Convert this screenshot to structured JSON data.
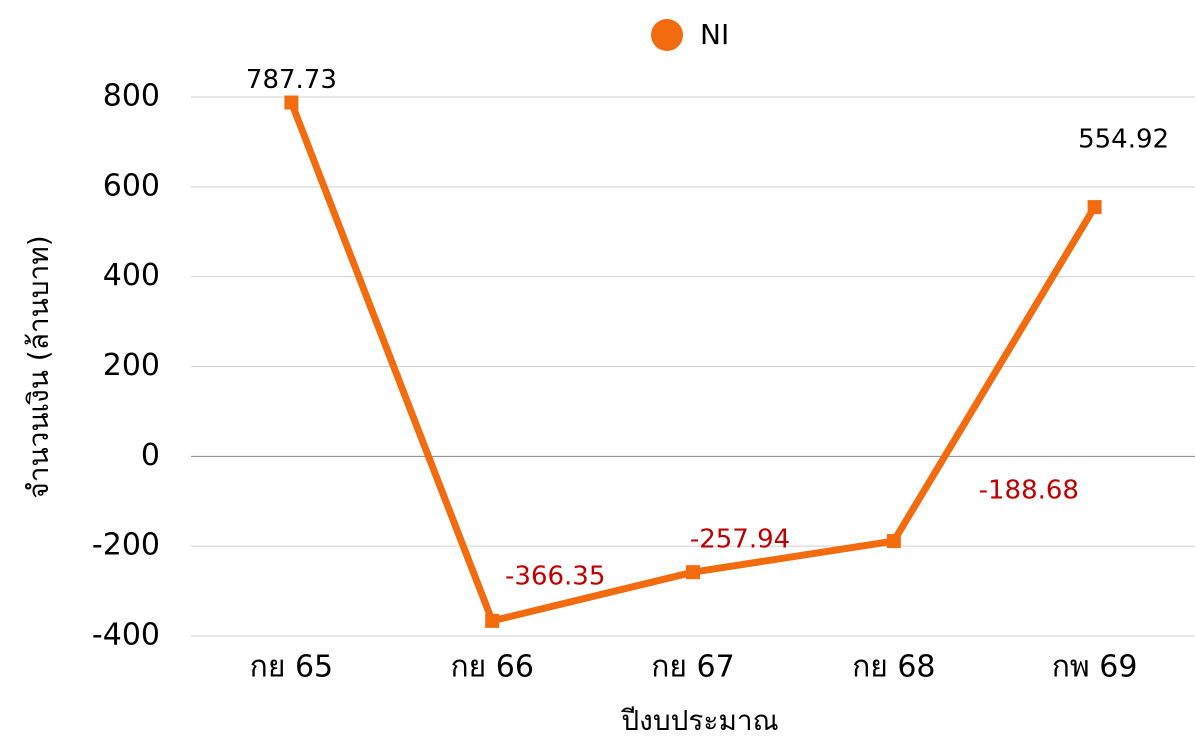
{
  "chart_data": {
    "type": "line",
    "x_label": "ปีงบประมาณ",
    "y_label": "จำนวนเงิน (ล้านบาท)",
    "categories": [
      "กย 65",
      "กย 66",
      "กย 67",
      "กย 68",
      "กพ 69"
    ],
    "series": [
      {
        "name": "NI",
        "color": "#f26b0f",
        "values": [
          787.73,
          -366.35,
          -257.94,
          -188.68,
          554.92
        ]
      }
    ],
    "ylim": [
      -400,
      800
    ],
    "yticks": [
      -400,
      -200,
      0,
      200,
      400,
      600,
      800
    ],
    "grid": true,
    "legend": "top",
    "label_color": "#000000",
    "negative_label_color": "#c00000"
  }
}
